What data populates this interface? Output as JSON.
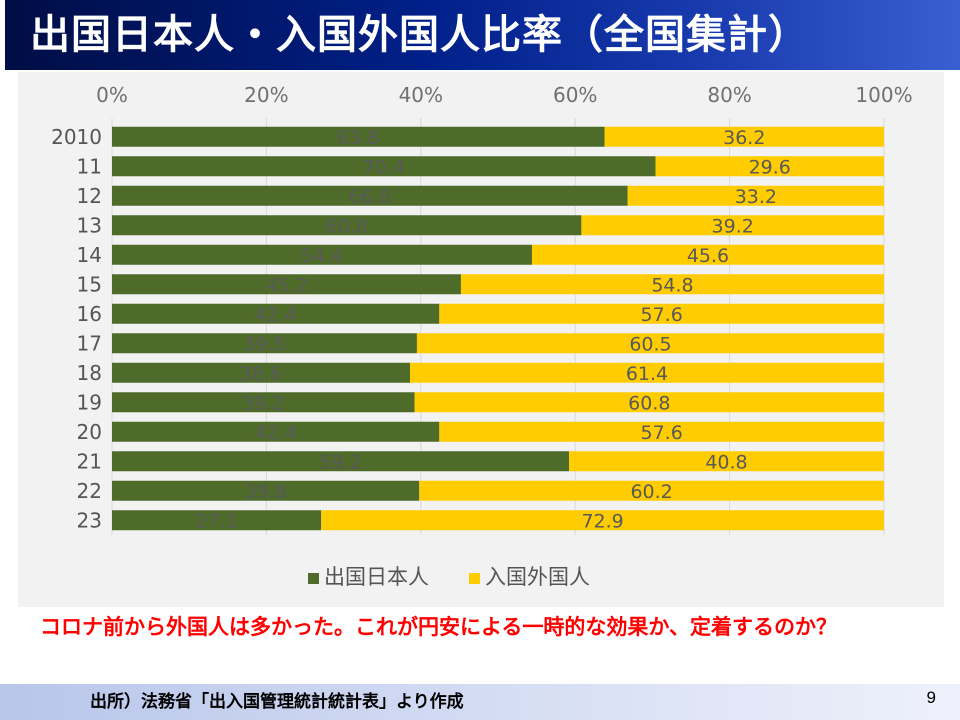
{
  "slide": {
    "title": "出国日本人・入国外国人比率（全国集計）",
    "comment": "コロナ前から外国人は多かった。これが円安による一時的な効果か、定着するのか？",
    "source": "出所）法務省「出入国管理統計統計表」より作成",
    "page_number": "9"
  },
  "chart_data": {
    "type": "bar",
    "orientation": "horizontal",
    "stacked": "percent",
    "categories": [
      "2010",
      "11",
      "12",
      "13",
      "14",
      "15",
      "16",
      "17",
      "18",
      "19",
      "20",
      "21",
      "22",
      "23"
    ],
    "series": [
      {
        "name": "出国日本人",
        "color": "#4e6b2a",
        "values": [
          63.8,
          70.4,
          66.8,
          60.8,
          54.4,
          45.2,
          42.4,
          39.5,
          38.6,
          39.2,
          42.4,
          59.2,
          39.8,
          27.1
        ]
      },
      {
        "name": "入国外国人",
        "color": "#ffcc00",
        "values": [
          36.2,
          29.6,
          33.2,
          39.2,
          45.6,
          54.8,
          57.6,
          60.5,
          61.4,
          60.8,
          57.6,
          40.8,
          60.2,
          72.9
        ]
      }
    ],
    "data_labels": [
      [
        "63.8",
        "70.4",
        "66.8",
        "60.8",
        "54.4",
        "45.2",
        "42.4",
        "39.5",
        "38.6",
        "39.2",
        "42.4",
        "59.2",
        "39.8",
        "27.1"
      ],
      [
        "36.2",
        "29.6",
        "33.2",
        "39.2",
        "45.6",
        "54.8",
        "57.6",
        "60.5",
        "61.4",
        "60.8",
        "57.6",
        "40.8",
        "60.2",
        "72.9"
      ]
    ],
    "x_ticks": [
      "0%",
      "20%",
      "40%",
      "60%",
      "80%",
      "100%"
    ],
    "xlim": [
      0,
      100
    ],
    "xaxis_position": "top",
    "grid": true,
    "legend_position": "bottom"
  }
}
